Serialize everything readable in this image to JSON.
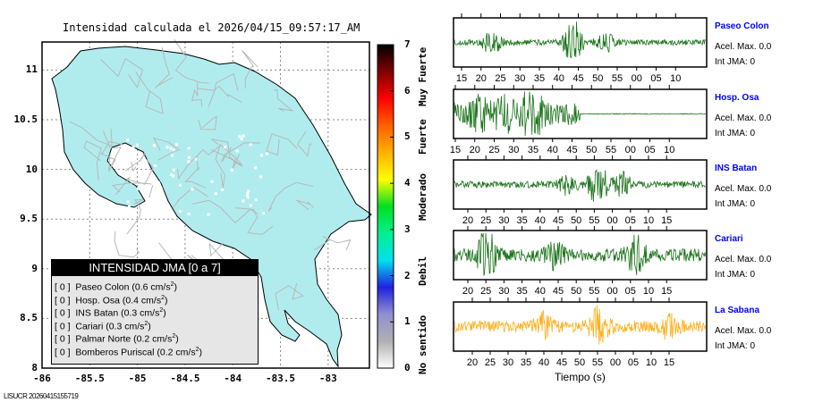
{
  "title": "Intensidad calculada el 2026/04/15_09:57:17_AM",
  "footer": "LISUCR 20260415155719",
  "chart_data": [
    {
      "type": "map",
      "title": "Intensidad calculada el 2026/04/15_09:57:17_AM",
      "xlim": [
        -86,
        -82.57
      ],
      "ylim": [
        8,
        11.28
      ],
      "xticks": [
        "-86",
        "-85.5",
        "-85",
        "-84.5",
        "-84",
        "-83.5",
        "-83"
      ],
      "yticks": [
        "8",
        "8.5",
        "9",
        "9.5",
        "10",
        "10.5",
        "11"
      ],
      "land_color": "#b0ecee",
      "grid": true,
      "legend": {
        "title": "INTENSIDAD JMA [0 a 7]",
        "placement": "bottom-left",
        "items": [
          {
            "int": "[ 0 ]",
            "station": "Paseo Colon",
            "acc": "(0.6 cm/s",
            "sup": "2",
            "close": ")"
          },
          {
            "int": "[ 0 ]",
            "station": "Hosp. Osa",
            "acc": "(0.4 cm/s",
            "sup": "2",
            "close": ")"
          },
          {
            "int": "[ 0 ]",
            "station": "INS Batan",
            "acc": "(0.3 cm/s",
            "sup": "2",
            "close": ")"
          },
          {
            "int": "[ 0 ]",
            "station": "Cariari",
            "acc": "(0.3 cm/s",
            "sup": "2",
            "close": ")"
          },
          {
            "int": "[ 0 ]",
            "station": "Palmar Norte",
            "acc": "(0.2 cm/s",
            "sup": "2",
            "close": ")"
          },
          {
            "int": "[ 0 ]",
            "station": "Bomberos Puriscal",
            "acc": "(0.2 cm/s",
            "sup": "2",
            "close": ")"
          }
        ]
      }
    },
    {
      "type": "colorbar",
      "range": [
        0,
        7
      ],
      "ticks": [
        "0",
        "1",
        "2",
        "3",
        "4",
        "5",
        "6",
        "7"
      ],
      "categories": [
        "No sentido",
        "Debil",
        "Moderado",
        "Fuerte",
        "Muy Fuerte"
      ],
      "colors": [
        "#ffffff",
        "#b0b0b0",
        "#9090d0",
        "#2020e0",
        "#00e0f0",
        "#00f090",
        "#00e020",
        "#ffff00",
        "#ffb000",
        "#ff6000",
        "#ff0000",
        "#800000",
        "#000000"
      ]
    },
    {
      "type": "line",
      "xlabel": "Tiempo (s)",
      "series": [
        {
          "name": "Paseo Colon",
          "acel": "Acel. Max. 0.0",
          "int": "Int JMA: 0",
          "color": "#006400",
          "ticks": [
            "15",
            "20",
            "25",
            "30",
            "35",
            "40",
            "45",
            "50",
            "55",
            "00",
            "05",
            "10"
          ]
        },
        {
          "name": "Hosp. Osa",
          "acel": "Acel. Max. 0.0",
          "int": "Int JMA: 0",
          "color": "#006400",
          "ticks": [
            "15",
            "20",
            "25",
            "30",
            "35",
            "40",
            "45",
            "50",
            "55",
            "00",
            "05",
            "10"
          ]
        },
        {
          "name": "INS Batan",
          "acel": "Acel. Max. 0.0",
          "int": "Int JMA: 0",
          "color": "#006400",
          "ticks": [
            "20",
            "25",
            "30",
            "35",
            "40",
            "45",
            "50",
            "55",
            "00",
            "05",
            "10",
            "15"
          ]
        },
        {
          "name": "Cariari",
          "acel": "Acel. Max. 0.0",
          "int": "Int JMA: 0",
          "color": "#006400",
          "ticks": [
            "20",
            "25",
            "30",
            "35",
            "40",
            "45",
            "50",
            "55",
            "00",
            "05",
            "10",
            "15"
          ]
        },
        {
          "name": "La Sabana",
          "acel": "Acel. Max. 0.0",
          "int": "Int JMA: 0",
          "color": "#ffa500",
          "ticks": [
            "20",
            "25",
            "30",
            "35",
            "40",
            "45",
            "50",
            "55",
            "00",
            "05",
            "10",
            "15"
          ]
        }
      ]
    }
  ]
}
